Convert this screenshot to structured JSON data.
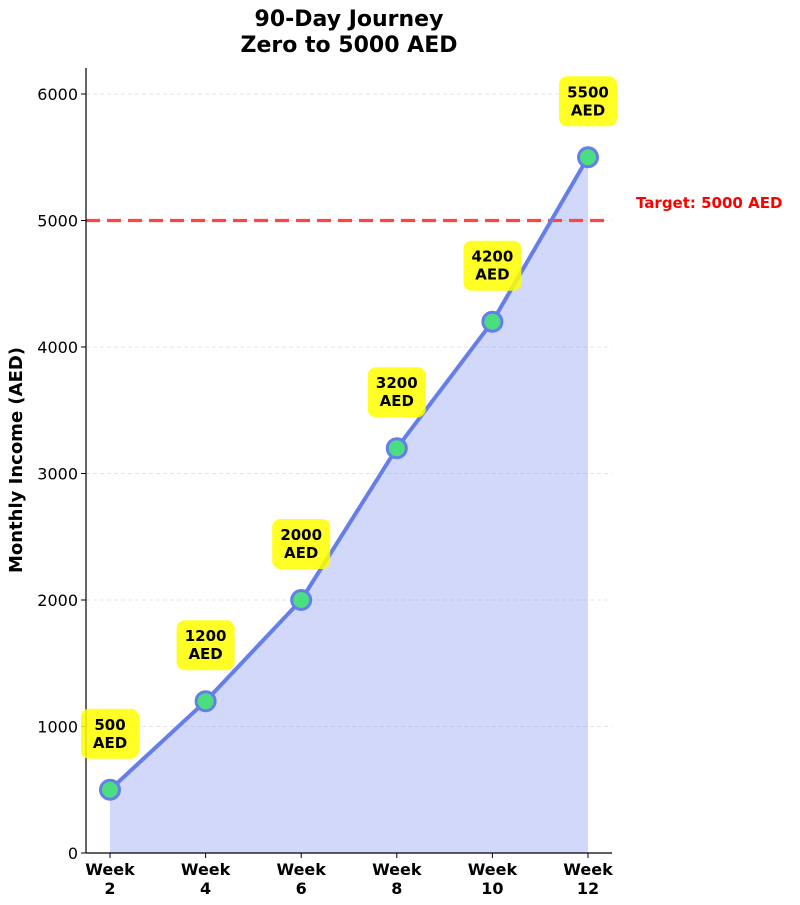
{
  "chart_data": {
    "type": "line",
    "title": "90-Day Journey\nZero to 5000 AED",
    "title_lines": [
      "90-Day Journey",
      "Zero to 5000 AED"
    ],
    "xlabel": "",
    "ylabel": "Monthly Income (AED)",
    "categories": [
      "Week\n2",
      "Week\n4",
      "Week\n6",
      "Week\n8",
      "Week\n10",
      "Week\n12"
    ],
    "x_tick_lines": [
      [
        "Week",
        "2"
      ],
      [
        "Week",
        "4"
      ],
      [
        "Week",
        "6"
      ],
      [
        "Week",
        "8"
      ],
      [
        "Week",
        "10"
      ],
      [
        "Week",
        "12"
      ]
    ],
    "series": [
      {
        "name": "Monthly Income",
        "values": [
          500,
          1200,
          2000,
          3200,
          4200,
          5500
        ],
        "fill_area": true
      }
    ],
    "annotations": [
      {
        "lines": [
          "500",
          "AED"
        ],
        "value": 500
      },
      {
        "lines": [
          "1200",
          "AED"
        ],
        "value": 1200
      },
      {
        "lines": [
          "2000",
          "AED"
        ],
        "value": 2000
      },
      {
        "lines": [
          "3200",
          "AED"
        ],
        "value": 3200
      },
      {
        "lines": [
          "4200",
          "AED"
        ],
        "value": 4200
      },
      {
        "lines": [
          "5500",
          "AED"
        ],
        "value": 5500
      }
    ],
    "reference_line": {
      "value": 5000,
      "label": "Target: 5000 AED",
      "style": "dashed",
      "color": "#ff4444"
    },
    "yticks": [
      0,
      1000,
      2000,
      3000,
      4000,
      5000,
      6000
    ],
    "ylim": [
      0,
      6200
    ],
    "grid": {
      "y": true,
      "style": "dashed"
    },
    "legend": null,
    "colors": {
      "line": "#667eea",
      "fill": "#667eea",
      "fill_opacity": 0.3,
      "marker_fill": "#4ade80",
      "marker_edge": "#667eea",
      "annotation_bg": "#ffff00",
      "target_line": "#ff4444",
      "target_text": "#ff0000"
    }
  }
}
